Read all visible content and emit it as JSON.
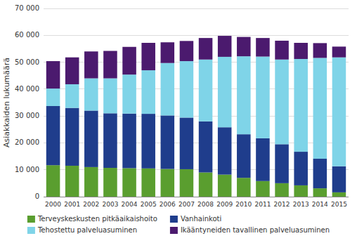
{
  "chart_data": {
    "type": "bar",
    "stacked": true,
    "ylabel": "Asiakkaiden lukumäärä",
    "categories": [
      "2000",
      "2001",
      "2002",
      "2003",
      "2004",
      "2005",
      "2006",
      "2007",
      "2008",
      "2009",
      "2010",
      "2011",
      "2012",
      "2013",
      "2014",
      "2015"
    ],
    "series": [
      {
        "name": "Terveyskeskusten pitkäaikaishoito",
        "color": "#5a9e2f",
        "values": [
          11700,
          11500,
          11000,
          10700,
          10600,
          10500,
          10300,
          10200,
          9000,
          8200,
          7000,
          5800,
          5000,
          4200,
          3100,
          1600
        ]
      },
      {
        "name": "Vanhainkoti",
        "color": "#1f3d8c",
        "values": [
          22000,
          21500,
          21000,
          20300,
          20300,
          20300,
          19900,
          19200,
          19000,
          17600,
          16200,
          15900,
          14500,
          12500,
          11000,
          9700
        ]
      },
      {
        "name": "Tehostettu palveluasuminen",
        "color": "#7fd4e8",
        "values": [
          6500,
          8800,
          12000,
          13000,
          14500,
          16200,
          19500,
          21000,
          23000,
          26200,
          29000,
          30400,
          31500,
          34500,
          37500,
          40500
        ]
      },
      {
        "name": "Ikääntyneiden tavallinen palveluasuminen",
        "color": "#4b1a6e",
        "values": [
          10200,
          10000,
          10000,
          10200,
          10300,
          10200,
          7700,
          7500,
          8000,
          7800,
          7200,
          6900,
          7000,
          6000,
          5500,
          4000
        ]
      }
    ],
    "ylim": [
      0,
      70000
    ],
    "yticks": [
      0,
      {
        "value": 10000,
        "label": "10 000"
      },
      {
        "value": 20000,
        "label": "20 000"
      },
      {
        "value": 30000,
        "label": "30 000"
      },
      {
        "value": 40000,
        "label": "40 000"
      },
      {
        "value": 50000,
        "label": "50 000"
      },
      {
        "value": 60000,
        "label": "60 000"
      },
      {
        "value": 70000,
        "label": "70 000"
      }
    ],
    "grid": true,
    "legend": "bottom"
  }
}
